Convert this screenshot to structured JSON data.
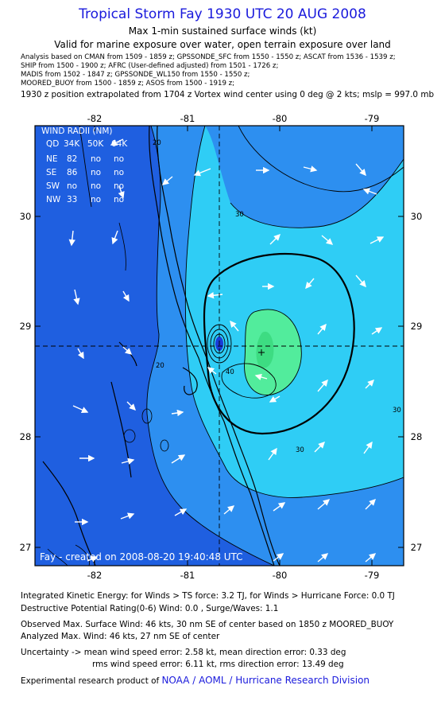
{
  "header": {
    "title": "Tropical Storm Fay 1930 UTC 20 AUG 2008",
    "subtitle": "Max 1-min sustained surface winds (kt)",
    "validity": "Valid for marine exposure over water, open terrain exposure over land",
    "analysis_lines": [
      "Analysis based on  CMAN from 1509 - 1859 z;  GPSSONDE_SFC from 1550 - 1550 z;  ASCAT from 1536 - 1539 z;",
      "SHIP from 1500 - 1900 z;  AFRC (User-defined adjusted) from 1501 - 1726 z;",
      "MADIS from 1502 - 1847 z;  GPSSONDE_WL150 from 1550 - 1550 z;",
      "MOORED_BUOY from 1500 - 1859 z;  ASOS from 1500 - 1919 z;"
    ],
    "position_note": "1930 z position extrapolated from 1704 z Vortex wind center using 0 deg @ 2 kts; mslp = 997.0 mb"
  },
  "map": {
    "lon_ticks": [
      "-82",
      "-81",
      "-80",
      "-79"
    ],
    "lat_ticks": [
      "30",
      "29",
      "28",
      "27"
    ],
    "wind_radii": {
      "title": "WIND RADII (NM)",
      "headers": [
        "QD",
        "34K",
        "50K",
        "64K"
      ],
      "rows": [
        [
          "NE",
          "82",
          "no",
          "no"
        ],
        [
          "SE",
          "86",
          "no",
          "no"
        ],
        [
          "SW",
          "no",
          "no",
          "no"
        ],
        [
          "NW",
          "33",
          "no",
          "no"
        ]
      ]
    },
    "contour_labels": [
      "20",
      "30",
      "40",
      "30",
      "30",
      "20"
    ],
    "credit": "Fay - created on 2008-08-20 19:40:48 UTC",
    "colors": {
      "under_20": "#1f5fe0",
      "20_to_30": "#2d8ff0",
      "30_to_40": "#2fcdf5",
      "40_plus": "#52ec9c",
      "lines": "#000000",
      "arrows": "#ffffff"
    }
  },
  "footer": {
    "ike": "Integrated Kinetic Energy:  for Winds > TS force: 3.2 TJ,  for Winds > Hurricane Force: 0.0 TJ",
    "dpr": "Destructive Potential Rating(0-6)   Wind: 0.0 , Surge/Waves: 1.1",
    "observed": "Observed Max. Surface Wind: 46 kts, 30 nm SE of center based on 1850 z MOORED_BUOY",
    "analyzed": "Analyzed Max. Wind: 46 kts, 27 nm SE of center",
    "uncertainty1": "Uncertainty -> mean wind speed error: 2.58 kt,   mean direction error: 0.33 deg",
    "uncertainty2": "rms wind speed error: 6.11 kt,   rms direction error: 13.49 deg",
    "credit_prefix": "Experimental research product of",
    "credit_org": "NOAA / AOML / Hurricane Research Division"
  }
}
